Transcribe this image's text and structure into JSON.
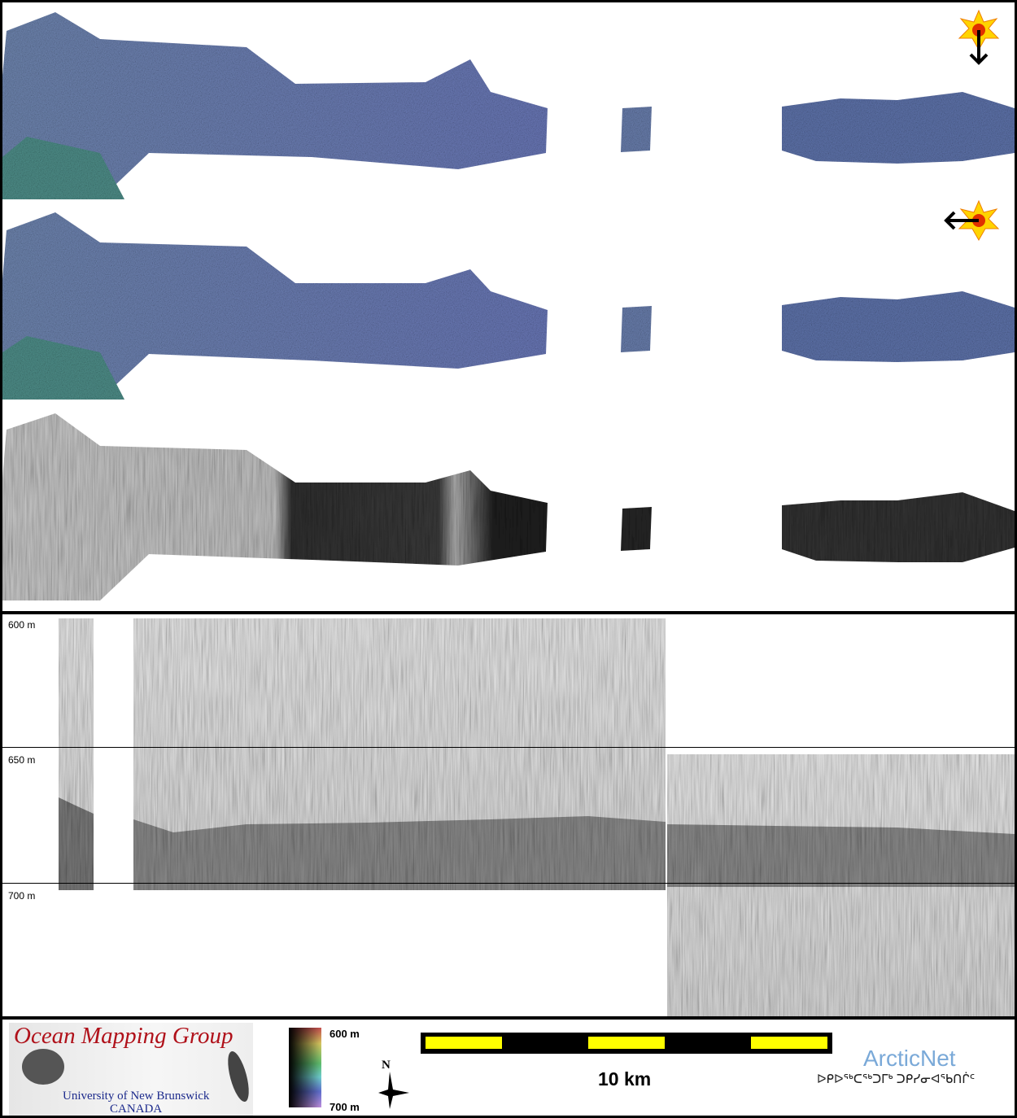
{
  "profile": {
    "depth_labels": [
      "600 m",
      "650 m",
      "700 m"
    ]
  },
  "footer": {
    "logo": {
      "title": "Ocean Mapping Group",
      "university": "University of New Brunswick",
      "country": "CANADA"
    },
    "colorbar": {
      "top_label": "600 m",
      "bottom_label": "700 m"
    },
    "north_arrow": {
      "label": "N"
    },
    "scale_bar": {
      "label": "10 km",
      "colors": [
        "#ffff00",
        "#000000"
      ]
    },
    "partner": {
      "name": "ArcticNet",
      "name_inuktitut": "ᐅᑭᐅᖅᑕᖅᑐᒥᒃ ᑐᑭᓯᓂᐊᖃᑎᒌᑦ"
    }
  },
  "maps": {
    "panel_1": {
      "illumination": "from-north",
      "icon": "sun-arrow-down-icon"
    },
    "panel_2": {
      "illumination": "from-east",
      "icon": "sun-arrow-left-icon"
    },
    "panel_3": {
      "type": "backscatter"
    }
  }
}
